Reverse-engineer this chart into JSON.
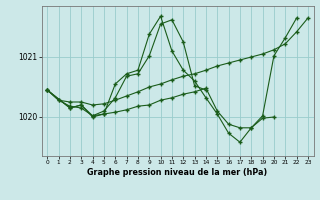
{
  "xlabel_label": "Graphe pression niveau de la mer (hPa)",
  "bg_color": "#cce8e8",
  "grid_color": "#99cccc",
  "line_color": "#1a5c1a",
  "x_ticks": [
    0,
    1,
    2,
    3,
    4,
    5,
    6,
    7,
    8,
    9,
    10,
    11,
    12,
    13,
    14,
    15,
    16,
    17,
    18,
    19,
    20,
    21,
    22,
    23
  ],
  "ylim": [
    1019.35,
    1021.85
  ],
  "yticks": [
    1020,
    1021
  ],
  "s1_x": [
    0,
    1,
    2,
    3,
    4,
    5,
    6,
    7,
    8,
    9,
    10,
    11,
    12,
    13,
    14,
    15,
    16,
    17,
    18,
    19,
    20,
    21,
    22,
    23
  ],
  "s1_y": [
    1020.45,
    1020.28,
    1020.25,
    1020.25,
    1020.2,
    1020.22,
    1020.28,
    1020.35,
    1020.42,
    1020.5,
    1020.55,
    1020.62,
    1020.68,
    1020.72,
    1020.78,
    1020.85,
    1020.9,
    1020.95,
    1021.0,
    1021.05,
    1021.12,
    1021.22,
    1021.42,
    1021.65
  ],
  "s2_x": [
    0,
    2,
    3,
    4,
    5,
    6,
    7,
    8,
    9,
    10,
    11,
    12,
    13,
    14,
    15,
    16,
    17,
    18,
    19,
    20,
    21,
    22
  ],
  "s2_y": [
    1020.45,
    1020.15,
    1020.2,
    1020.0,
    1020.05,
    1020.55,
    1020.72,
    1020.78,
    1021.38,
    1021.68,
    1021.1,
    1020.78,
    1020.6,
    1020.32,
    1020.05,
    1019.73,
    1019.58,
    1019.82,
    1020.02,
    1021.02,
    1021.32,
    1021.65
  ],
  "s3_x": [
    0,
    1,
    2,
    3,
    4,
    5,
    6,
    7,
    8,
    9,
    10,
    11,
    12,
    13,
    14,
    15,
    16,
    17,
    18,
    19,
    20
  ],
  "s3_y": [
    1020.45,
    1020.28,
    1020.18,
    1020.15,
    1020.02,
    1020.05,
    1020.08,
    1020.12,
    1020.18,
    1020.2,
    1020.28,
    1020.32,
    1020.38,
    1020.42,
    1020.48,
    1020.1,
    1019.88,
    1019.82,
    1019.82,
    1019.98,
    1020.0
  ],
  "s4_x": [
    0,
    2,
    3,
    4,
    5,
    6,
    7,
    8,
    9,
    10,
    11,
    12,
    13,
    14
  ],
  "s4_y": [
    1020.45,
    1020.15,
    1020.2,
    1020.02,
    1020.1,
    1020.32,
    1020.68,
    1020.72,
    1021.02,
    1021.55,
    1021.62,
    1021.25,
    1020.52,
    1020.45
  ]
}
